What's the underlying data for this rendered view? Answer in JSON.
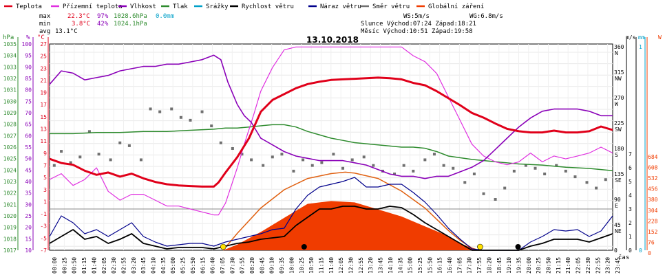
{
  "colors": {
    "teplota": "#e0001a",
    "prizemni": "#e030e0",
    "vlhkost": "#8a00b8",
    "tlak": "#2e8b2e",
    "srazky": "#00a0c8",
    "rychlost": "#000000",
    "naraz": "#00008b",
    "smer": "#707070",
    "zareni": "#f03c00",
    "zareni_line": "#e06010"
  },
  "legend": [
    {
      "label": "Teplota",
      "color": "#e0001a"
    },
    {
      "label": "Přízemní teplota",
      "color": "#e030e0"
    },
    {
      "label": "Vlhkost",
      "color": "#8a00b8"
    },
    {
      "label": "Tlak",
      "color": "#2e8b2e"
    },
    {
      "label": "Srážky",
      "color": "#00a0c8"
    },
    {
      "label": "Rychlost větru",
      "color": "#000000"
    },
    {
      "label": "Náraz větru",
      "color": "#00008b"
    },
    {
      "label": "Směr větru",
      "color": "#707070"
    },
    {
      "label": "Globální záření",
      "color": "#f03c00"
    }
  ],
  "stats": {
    "max_label": "max",
    "max_temp": "22.3°C",
    "max_hum": "97%",
    "max_press": "1028.6hPa",
    "max_rain": "0.0mm",
    "min_label": "min",
    "min_temp": "3.8°C",
    "min_hum": "42%",
    "min_press": "1024.1hPa",
    "avg_label": "avg",
    "avg_temp": "13.1°C",
    "ws": "WS:5m/s",
    "wg": "WG:6.8m/s",
    "sun": "Slunce Východ:07:24  Západ:18:21",
    "moon": "Měsíc  Východ:10:51  Západ:19:58"
  },
  "chart_data": {
    "type": "line",
    "title": "13.10.2018",
    "xlabel": "čas",
    "x_ticks": [
      "00:00",
      "00:25",
      "00:50",
      "01:15",
      "01:40",
      "02:05",
      "02:30",
      "02:55",
      "03:20",
      "03:45",
      "04:10",
      "04:35",
      "05:00",
      "05:25",
      "05:50",
      "06:15",
      "06:40",
      "07:05",
      "07:30",
      "07:55",
      "08:20",
      "08:45",
      "09:10",
      "09:35",
      "10:00",
      "10:25",
      "10:50",
      "11:15",
      "11:40",
      "12:05",
      "12:30",
      "12:55",
      "13:20",
      "13:45",
      "14:10",
      "14:35",
      "15:00",
      "15:25",
      "15:50",
      "16:15",
      "16:40",
      "17:05",
      "17:30",
      "17:55",
      "18:20",
      "18:45",
      "19:10",
      "19:35",
      "20:00",
      "20:25",
      "20:50",
      "21:15",
      "21:40",
      "22:05",
      "22:30",
      "22:55",
      "23:20",
      "23:45"
    ],
    "axes": {
      "hpa": {
        "unit": "hPa",
        "ticks": [
          "1035",
          "1034",
          "1033",
          "1032",
          "1031",
          "1030",
          "1029",
          "1028",
          "1027",
          "1026",
          "1025",
          "1024",
          "1023",
          "1022",
          "1021",
          "1020",
          "1019",
          "1018",
          "1017"
        ]
      },
      "pct": {
        "unit": "%",
        "ticks": [
          "100",
          "95",
          "90",
          "85",
          "80",
          "75",
          "70",
          "65",
          "60",
          "55",
          "50",
          "45",
          "40",
          "35",
          "30",
          "25",
          "20",
          "15",
          "10"
        ]
      },
      "degc": {
        "unit": "°C",
        "ticks": [
          "27",
          "25",
          "23",
          "21",
          "19",
          "17",
          "15",
          "13",
          "11",
          "9",
          "7",
          "5",
          "3",
          "1",
          "-1",
          "-3",
          "-5",
          "-7"
        ],
        "ylim": [
          -7,
          28
        ]
      },
      "dir": {
        "ticks": [
          "360",
          "315",
          "270",
          "225",
          "180",
          "135",
          "90",
          "45",
          "0"
        ],
        "labels": [
          "N",
          "NW",
          "W",
          "SW",
          "S",
          "SE",
          "E",
          "NE",
          ""
        ]
      },
      "ms": {
        "unit": "m/s",
        "ticks": [
          "7",
          "6",
          "5",
          "4",
          "3",
          "2",
          "1",
          "0"
        ]
      },
      "mm": {
        "unit": "mm",
        "ticks": [
          "1",
          "0"
        ]
      },
      "w": {
        "unit": "W",
        "ticks": [
          "684",
          "608",
          "532",
          "456",
          "380",
          "304",
          "228",
          "152",
          "76",
          "0"
        ]
      }
    },
    "series": [
      {
        "name": "Teplota",
        "unit": "°C",
        "x": [
          0,
          0.5,
          1,
          1.5,
          2,
          2.5,
          3,
          3.5,
          4,
          4.5,
          5,
          5.5,
          6,
          6.5,
          7,
          7.2,
          7.5,
          8,
          8.5,
          9,
          9.5,
          10,
          10.5,
          11,
          11.5,
          12,
          12.5,
          13,
          13.5,
          14,
          14.5,
          15,
          15.5,
          16,
          16.5,
          17,
          17.5,
          18,
          18.5,
          19,
          19.5,
          20,
          20.5,
          21,
          21.5,
          22,
          22.5,
          23,
          23.5,
          24
        ],
        "y": [
          8.5,
          7.8,
          7.5,
          6.5,
          5.8,
          6.2,
          5.5,
          6,
          5.2,
          4.6,
          4.2,
          4.0,
          3.9,
          3.8,
          3.8,
          4.5,
          6.2,
          8.8,
          12,
          16.5,
          18.5,
          19.5,
          20.5,
          21.2,
          21.6,
          21.9,
          22.0,
          22.1,
          22.2,
          22.3,
          22.2,
          22.0,
          21.4,
          21.0,
          20.0,
          18.8,
          17.6,
          16.3,
          15.5,
          14.5,
          13.6,
          13.2,
          13.0,
          13.0,
          13.3,
          13.0,
          13.0,
          13.2,
          14.0,
          13.4
        ]
      },
      {
        "name": "Přízemní teplota",
        "unit": "°C",
        "x": [
          0,
          0.5,
          1,
          1.5,
          2,
          2.5,
          3,
          3.5,
          4,
          4.5,
          5,
          5.5,
          6,
          6.5,
          7,
          7.2,
          7.5,
          8,
          8.3,
          8.7,
          9,
          9.5,
          10,
          10.5,
          11,
          11.5,
          12,
          12.5,
          13,
          13.5,
          14,
          14.5,
          15,
          15.5,
          16,
          16.5,
          17,
          17.5,
          18,
          18.5,
          19,
          19.5,
          20,
          20.5,
          21,
          21.5,
          22,
          22.5,
          23,
          23.5,
          24
        ],
        "y": [
          5,
          6,
          4,
          5,
          7,
          3,
          1.5,
          2.5,
          2.5,
          1.5,
          0.5,
          0.5,
          0,
          -0.5,
          -1,
          -1,
          1,
          7,
          11,
          16,
          20,
          24,
          27,
          27.5,
          27.5,
          27.5,
          27.5,
          27.5,
          27.5,
          27.5,
          27.5,
          27.5,
          27.5,
          26,
          25,
          23,
          19,
          15,
          11,
          9,
          8,
          7.5,
          8,
          9.5,
          8,
          9,
          8.5,
          9,
          9.5,
          10.5,
          9.5
        ]
      },
      {
        "name": "Vlhkost",
        "unit": "%",
        "x": [
          0,
          0.5,
          1,
          1.5,
          2,
          2.5,
          3,
          3.5,
          4,
          4.5,
          5,
          5.5,
          6,
          6.5,
          7,
          7.3,
          7.6,
          8,
          8.3,
          8.6,
          9,
          9.5,
          10,
          10.5,
          11,
          11.5,
          12,
          12.5,
          13,
          13.5,
          14,
          14.5,
          15,
          15.5,
          16,
          16.5,
          17,
          17.5,
          18,
          18.5,
          19,
          19.5,
          20,
          20.5,
          21,
          21.5,
          22,
          22.5,
          23,
          23.5,
          24
        ],
        "y": [
          84,
          90,
          89,
          86,
          87,
          88,
          90,
          91,
          92,
          92,
          93,
          93,
          94,
          95,
          97,
          95,
          85,
          75,
          70,
          67,
          60,
          57,
          54,
          52,
          51,
          50,
          50,
          50,
          49,
          48,
          46,
          44,
          43,
          43,
          42,
          43,
          43,
          45,
          47,
          50,
          55,
          60,
          65,
          69,
          72,
          73,
          73,
          73,
          72,
          70,
          70
        ]
      },
      {
        "name": "Tlak",
        "unit": "hPa",
        "x": [
          0,
          1,
          2,
          3,
          4,
          5,
          6,
          7,
          7.5,
          8,
          8.5,
          9,
          9.5,
          10,
          10.5,
          11,
          11.5,
          12,
          12.5,
          13,
          13.5,
          14,
          14.5,
          15,
          15.5,
          16,
          16.5,
          17,
          18,
          19,
          20,
          21,
          22,
          23,
          24
        ],
        "y": [
          1027.4,
          1027.4,
          1027.5,
          1027.5,
          1027.6,
          1027.6,
          1027.7,
          1027.8,
          1027.9,
          1027.9,
          1028,
          1028.1,
          1028.2,
          1028.2,
          1028,
          1027.6,
          1027.3,
          1027,
          1026.8,
          1026.6,
          1026.5,
          1026.4,
          1026.3,
          1026.2,
          1026.2,
          1026.1,
          1025.8,
          1025.4,
          1025.1,
          1024.9,
          1024.7,
          1024.6,
          1024.4,
          1024.3,
          1024.1
        ]
      },
      {
        "name": "Rychlost větru",
        "unit": "m/s",
        "x": [
          0,
          0.5,
          1,
          1.5,
          2,
          2.5,
          3,
          3.5,
          4,
          4.5,
          5,
          5.5,
          6,
          6.5,
          7,
          7.5,
          8,
          8.5,
          9,
          9.5,
          10,
          10.5,
          11,
          11.5,
          12,
          12.5,
          13,
          13.5,
          14,
          14.5,
          15,
          15.5,
          16,
          16.5,
          17,
          17.5,
          18,
          18.5,
          19,
          19.5,
          20,
          20.5,
          21,
          21.5,
          22,
          22.5,
          23,
          23.5,
          24
        ],
        "y": [
          0.5,
          1,
          1.5,
          0.8,
          1,
          0.5,
          0.8,
          1.2,
          0.5,
          0.3,
          0.1,
          0.2,
          0.2,
          0.2,
          0.1,
          0.3,
          0.5,
          0.6,
          0.8,
          0.9,
          1,
          1.8,
          2.4,
          3,
          3,
          3.2,
          3.2,
          3,
          3,
          3.2,
          3.1,
          2.6,
          2,
          1.5,
          1,
          0.5,
          0,
          0,
          0,
          0,
          0,
          0.3,
          0.5,
          0.8,
          0.8,
          0.8,
          0.6,
          0.9,
          1.2
        ]
      },
      {
        "name": "Náraz větru",
        "unit": "m/s",
        "x": [
          0,
          0.5,
          1,
          1.5,
          2,
          2.5,
          3,
          3.5,
          4,
          4.5,
          5,
          5.5,
          6,
          6.5,
          7,
          7.5,
          8,
          8.5,
          9,
          9.5,
          10,
          10.5,
          11,
          11.5,
          12,
          12.5,
          13,
          13.5,
          14,
          14.5,
          15,
          15.5,
          16,
          16.5,
          17,
          17.5,
          18,
          18.5,
          19,
          19.5,
          20,
          20.5,
          21,
          21.5,
          22,
          22.5,
          23,
          23.5,
          24
        ],
        "y": [
          1,
          2.5,
          2,
          1.2,
          1.5,
          1,
          1.5,
          2,
          1,
          0.6,
          0.3,
          0.4,
          0.5,
          0.5,
          0.3,
          0.6,
          0.8,
          1,
          1.2,
          1.5,
          1.6,
          3,
          4,
          4.6,
          4.8,
          5,
          5.3,
          4.6,
          4.6,
          4.8,
          4.8,
          4.2,
          3.5,
          2.6,
          1.6,
          0.8,
          0.1,
          0,
          0,
          0,
          0,
          0.6,
          1,
          1.5,
          1.4,
          1.5,
          1,
          1.4,
          2.5
        ]
      },
      {
        "name": "Globální záření",
        "unit": "W",
        "x": [
          7.4,
          8,
          9,
          10,
          11,
          12,
          12.5,
          13,
          14,
          15,
          16,
          17,
          17.5,
          18,
          18.3
        ],
        "y": [
          0,
          40,
          130,
          230,
          330,
          350,
          345,
          340,
          290,
          240,
          170,
          100,
          50,
          15,
          0
        ]
      },
      {
        "name": "Globální záření (max)",
        "unit": "W",
        "x": [
          7.4,
          8,
          9,
          10,
          11,
          12,
          12.6,
          13,
          14,
          15,
          16,
          17,
          17.5,
          18,
          18.3
        ],
        "y": [
          0,
          120,
          300,
          430,
          510,
          545,
          555,
          548,
          510,
          420,
          300,
          140,
          70,
          15,
          0
        ]
      }
    ],
    "wind_direction_deg": {
      "x": [
        0.2,
        0.5,
        0.9,
        1.3,
        1.7,
        2.1,
        2.6,
        3.0,
        3.4,
        3.9,
        4.3,
        4.7,
        5.2,
        5.6,
        6.0,
        6.5,
        6.9,
        7.3,
        7.8,
        8.2,
        8.6,
        9.1,
        9.5,
        9.9,
        10.4,
        10.8,
        11.2,
        11.6,
        12.1,
        12.5,
        12.9,
        13.4,
        13.8,
        14.2,
        14.7,
        15.1,
        15.5,
        16.0,
        16.4,
        16.8,
        17.2,
        17.7,
        18.1,
        18.5,
        19.0,
        19.4,
        19.8,
        20.3,
        20.7,
        21.1,
        21.6,
        22.0,
        22.4,
        22.9,
        23.3,
        23.7
      ],
      "y": [
        150,
        175,
        155,
        165,
        210,
        170,
        160,
        190,
        185,
        160,
        250,
        245,
        250,
        235,
        230,
        245,
        220,
        190,
        180,
        170,
        160,
        150,
        165,
        170,
        140,
        160,
        150,
        155,
        170,
        145,
        160,
        165,
        150,
        140,
        135,
        150,
        140,
        160,
        170,
        150,
        145,
        120,
        135,
        100,
        90,
        110,
        140,
        150,
        145,
        135,
        150,
        140,
        130,
        120,
        110,
        125
      ]
    },
    "markers": {
      "sunrise": "07:24",
      "sunset": "18:21",
      "moonrise": "10:51",
      "moonset": "19:58"
    }
  }
}
